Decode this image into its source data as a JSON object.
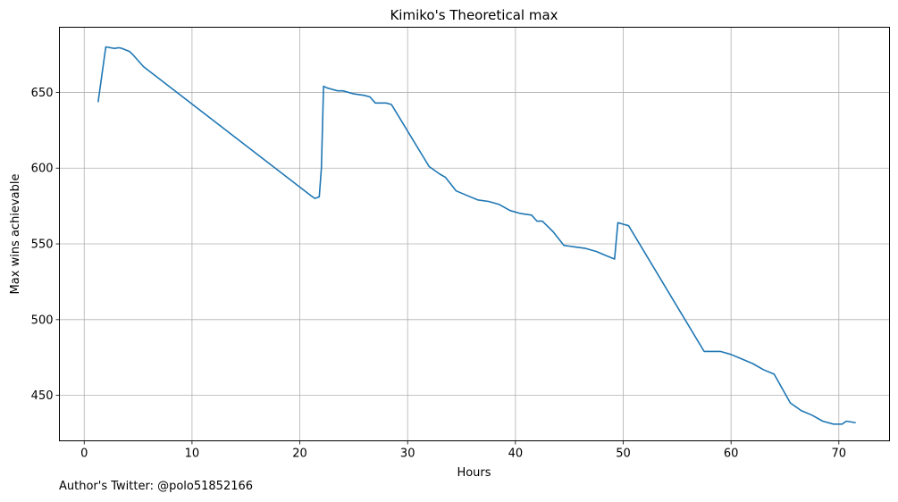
{
  "chart_data": {
    "type": "line",
    "title": "Kimiko's Theoretical max",
    "xlabel": "Hours",
    "ylabel": "Max wins achievable",
    "xlim": [
      -2.3,
      74.7
    ],
    "ylim": [
      420,
      693
    ],
    "xticks": [
      0,
      10,
      20,
      30,
      40,
      50,
      60,
      70
    ],
    "yticks": [
      450,
      500,
      550,
      600,
      650
    ],
    "grid": true,
    "legend": "none",
    "line_color": "#1f77b4",
    "series": [
      {
        "x": [
          1.3,
          2.0,
          2.8,
          3.2,
          3.5,
          4.2,
          4.5,
          5.5,
          21.0,
          21.4,
          21.8,
          22.0,
          22.2,
          22.5,
          23.0,
          23.5,
          24.0,
          25.0,
          26.0,
          26.5,
          27.0,
          28.0,
          28.5,
          32.0,
          33.0,
          33.5,
          34.5,
          35.5,
          36.5,
          37.5,
          38.5,
          39.5,
          40.5,
          41.5,
          42.0,
          42.5,
          43.5,
          44.5,
          45.5,
          46.5,
          47.5,
          48.5,
          49.2,
          49.5,
          50.0,
          50.5,
          57.5,
          59.0,
          60.0,
          61.0,
          62.0,
          63.0,
          64.0,
          65.5,
          66.5,
          67.5,
          68.5,
          69.5,
          70.3,
          70.7,
          71.5
        ],
        "y": [
          644,
          680,
          679,
          679.5,
          679,
          677,
          675,
          667,
          582,
          580,
          581,
          600,
          654,
          653,
          652,
          651,
          651,
          649,
          648,
          647,
          643,
          643,
          642,
          601,
          596,
          594,
          585,
          582,
          579,
          578,
          576,
          572,
          570,
          569,
          565,
          565,
          558,
          549,
          548,
          547,
          545,
          542,
          540,
          564,
          563,
          562,
          479,
          479,
          477,
          474,
          471,
          467,
          464,
          445,
          440,
          437,
          433,
          431,
          431,
          433,
          432
        ]
      }
    ]
  },
  "footer": {
    "credit": "Author's Twitter: @polo51852166"
  }
}
